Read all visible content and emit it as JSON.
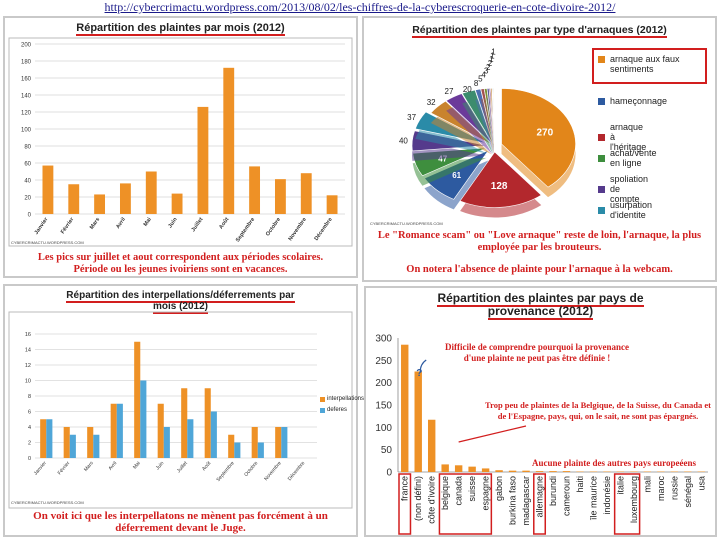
{
  "url": "http://cybercrimactu.wordpress.com/2013/08/02/les-chiffres-de-la-cyberescroquerie-en-cote-divoire-2012/",
  "watermark": "CYBERCRIMACTU.WORDPRESS.COM",
  "colors": {
    "orange": "#ee9126",
    "blue": "#4fa6d8",
    "red": "#d21e1e"
  },
  "chart_data": [
    {
      "type": "bar",
      "title": "Répartition des plaintes par mois (2012)",
      "categories": [
        "Janvier",
        "Février",
        "Mars",
        "Avril",
        "Mai",
        "Juin",
        "Juillet",
        "Août",
        "Septembre",
        "Octobre",
        "Novembre",
        "Décembre"
      ],
      "values": [
        57,
        35,
        23,
        36,
        50,
        24,
        126,
        172,
        56,
        41,
        48,
        22
      ],
      "ylim": [
        0,
        200
      ],
      "yticks": [
        "0",
        "20",
        "40",
        "60",
        "80",
        "100",
        "120",
        "140",
        "160",
        "180",
        "200"
      ],
      "grid": true,
      "caption": [
        "Les pics sur juillet et aout correspondent aux périodes scolaires.",
        "Période ou les jeunes ivoiriens sont en vacances."
      ]
    },
    {
      "type": "pie",
      "title": "Répartition des plaintes par type d'arnaques (2012)",
      "values": [
        270,
        128,
        61,
        47,
        40,
        37,
        32,
        27,
        20,
        8,
        5,
        4,
        3,
        2,
        2,
        1,
        1,
        1
      ],
      "labels": [
        "270",
        "128",
        "61",
        "47",
        "40",
        "37",
        "32",
        "27",
        "20",
        "8",
        "5",
        "4",
        "3",
        "2",
        "2",
        "1",
        "1",
        "1"
      ],
      "legend": [
        "arnaque aux faux sentiments",
        "hameçonnage",
        "arnaque à l'héritage",
        "achat/vente en ligne",
        "spoliation de compte",
        "usurpation d'identite"
      ],
      "caption": [
        "Le \"Romance scam\" ou \"Love arnaque\" reste de loin, l'arnaque, la plus employée par les brouteurs.",
        "On notera l'absence de plainte pour l'arnaque à la webcam."
      ]
    },
    {
      "type": "bar",
      "title": "Répartition des interpellations/déferrements par mois (2012)",
      "categories": [
        "Janvier",
        "Février",
        "Mars",
        "Avril",
        "Mai",
        "Juin",
        "Juillet",
        "Août",
        "Septembre",
        "Octobre",
        "Novembre",
        "Décembre"
      ],
      "series": [
        {
          "name": "interpellations",
          "values": [
            5,
            4,
            4,
            7,
            15,
            7,
            9,
            9,
            3,
            4,
            4,
            0
          ]
        },
        {
          "name": "deferes",
          "values": [
            5,
            3,
            3,
            7,
            10,
            4,
            5,
            6,
            2,
            2,
            4,
            0
          ]
        }
      ],
      "ylim": [
        0,
        16
      ],
      "yticks": [
        "0",
        "2",
        "4",
        "6",
        "8",
        "10",
        "12",
        "14",
        "16"
      ],
      "legend_position": "right",
      "caption": [
        "On voit ici que les interpellatons ne mènent pas forcément à un déferrement devant le Juge."
      ]
    },
    {
      "type": "bar",
      "title": "Répartition des plaintes par pays de provenance (2012)",
      "categories": [
        "france",
        "(non défini)",
        "côte d'ivoire",
        "belgique",
        "canada",
        "suisse",
        "espagne",
        "gabon",
        "burkina faso",
        "madagascar",
        "allemagne",
        "burundi",
        "cameroun",
        "haiti",
        "île maurice",
        "indonésie",
        "italie",
        "luxembourg",
        "mali",
        "maroc",
        "russie",
        "sénégal",
        "usa"
      ],
      "values": [
        285,
        225,
        117,
        17,
        15,
        12,
        8,
        4,
        3,
        3,
        2,
        2,
        2,
        1,
        1,
        1,
        1,
        1,
        1,
        1,
        1,
        1,
        1
      ],
      "ylim": [
        0,
        300
      ],
      "yticks": [
        "0",
        "50",
        "100",
        "150",
        "200",
        "250",
        "300"
      ],
      "highlighted": [
        "france",
        "belgique",
        "canada",
        "suisse",
        "espagne",
        "allemagne",
        "italie",
        "luxembourg"
      ],
      "notes": [
        "Difficile de comprendre pourquoi la provenance d'une plainte ne peut pas être définie !",
        "Trop peu de plaintes de la Belgique, de la Suisse, du Canada et de l'Espagne, pays, qui, on le sait, ne sont pas épargnés.",
        "Aucune plainte des autres pays europeéens"
      ]
    }
  ]
}
